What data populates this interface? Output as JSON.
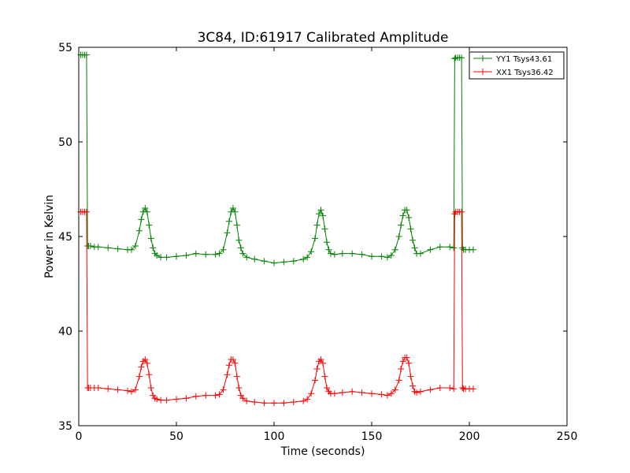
{
  "chart_data": {
    "type": "line",
    "title": "3C84, ID:61917 Calibrated Amplitude",
    "xlabel": "Time (seconds)",
    "ylabel": "Power in Kelvin",
    "xlim": [
      0,
      250
    ],
    "ylim": [
      35,
      55
    ],
    "xticks": [
      0,
      50,
      100,
      150,
      200,
      250
    ],
    "yticks": [
      35,
      40,
      45,
      50,
      55
    ],
    "grid": false,
    "legend_position": "top-right",
    "marker": "plus",
    "series": [
      {
        "name": "YY1 Tsys43.61",
        "color": "#008000",
        "x": [
          1,
          2,
          3,
          4,
          4.5,
          5,
          6,
          8,
          10,
          15,
          20,
          25,
          27,
          29,
          31,
          32,
          33,
          34,
          35,
          36,
          37,
          38,
          39,
          40,
          42,
          45,
          50,
          55,
          60,
          65,
          70,
          72,
          74,
          76,
          77,
          78,
          79,
          80,
          81,
          82,
          83,
          84,
          86,
          90,
          95,
          100,
          105,
          110,
          115,
          117,
          119,
          121,
          122,
          123,
          124,
          125,
          126,
          127,
          128,
          129,
          131,
          135,
          140,
          145,
          150,
          155,
          158,
          160,
          162,
          164,
          165,
          166,
          167,
          168,
          169,
          170,
          171,
          172,
          173,
          175,
          180,
          185,
          190,
          192,
          192.5,
          193,
          194,
          195,
          196,
          196.5,
          197,
          198,
          200,
          202
        ],
        "y": [
          54.6,
          54.6,
          54.6,
          54.6,
          44.5,
          44.5,
          44.5,
          44.45,
          44.45,
          44.4,
          44.35,
          44.3,
          44.3,
          44.5,
          45.3,
          45.9,
          46.3,
          46.5,
          46.3,
          45.6,
          44.9,
          44.4,
          44.1,
          44.0,
          43.9,
          43.9,
          43.95,
          44.0,
          44.1,
          44.05,
          44.05,
          44.1,
          44.3,
          45.2,
          45.8,
          46.3,
          46.5,
          46.3,
          45.6,
          44.8,
          44.4,
          44.1,
          43.9,
          43.8,
          43.7,
          43.6,
          43.65,
          43.7,
          43.8,
          43.9,
          44.2,
          44.9,
          45.6,
          46.2,
          46.4,
          46.1,
          45.4,
          44.7,
          44.3,
          44.1,
          44.05,
          44.1,
          44.1,
          44.05,
          43.95,
          43.95,
          43.9,
          44.0,
          44.3,
          45.0,
          45.6,
          46.1,
          46.4,
          46.4,
          46.0,
          45.4,
          44.8,
          44.4,
          44.1,
          44.1,
          44.3,
          44.45,
          44.45,
          44.4,
          54.4,
          54.45,
          54.45,
          54.45,
          54.45,
          44.4,
          44.3,
          44.3,
          44.3,
          44.3
        ]
      },
      {
        "name": "XX1 Tsys36.42",
        "color": "#ff0000",
        "x": [
          1,
          2,
          3,
          4,
          4.5,
          5,
          6,
          8,
          10,
          15,
          20,
          25,
          27,
          29,
          31,
          32,
          33,
          34,
          35,
          36,
          37,
          38,
          39,
          40,
          42,
          45,
          50,
          55,
          60,
          65,
          70,
          72,
          74,
          76,
          77,
          78,
          79,
          80,
          81,
          82,
          83,
          84,
          86,
          90,
          95,
          100,
          105,
          110,
          115,
          117,
          119,
          121,
          122,
          123,
          124,
          125,
          126,
          127,
          128,
          129,
          131,
          135,
          140,
          145,
          150,
          155,
          158,
          160,
          162,
          164,
          165,
          166,
          167,
          168,
          169,
          170,
          171,
          172,
          173,
          175,
          180,
          185,
          190,
          192,
          192.5,
          193,
          194,
          195,
          196,
          196.5,
          197,
          198,
          200,
          202
        ],
        "y": [
          46.3,
          46.3,
          46.3,
          46.3,
          37.0,
          37.0,
          37.0,
          37.0,
          37.0,
          36.95,
          36.9,
          36.85,
          36.8,
          36.9,
          37.6,
          38.1,
          38.4,
          38.5,
          38.3,
          37.7,
          37.0,
          36.6,
          36.45,
          36.4,
          36.35,
          36.35,
          36.4,
          36.45,
          36.55,
          36.6,
          36.6,
          36.65,
          36.9,
          37.7,
          38.2,
          38.5,
          38.5,
          38.3,
          37.6,
          37.0,
          36.6,
          36.45,
          36.3,
          36.25,
          36.2,
          36.2,
          36.2,
          36.25,
          36.3,
          36.4,
          36.7,
          37.4,
          38.0,
          38.4,
          38.5,
          38.3,
          37.6,
          37.0,
          36.8,
          36.7,
          36.7,
          36.75,
          36.8,
          36.75,
          36.7,
          36.65,
          36.6,
          36.7,
          36.9,
          37.4,
          38.0,
          38.4,
          38.6,
          38.6,
          38.3,
          37.6,
          37.1,
          36.8,
          36.75,
          36.8,
          36.9,
          37.0,
          37.0,
          36.95,
          46.2,
          46.3,
          46.3,
          46.3,
          46.3,
          37.0,
          36.95,
          36.95,
          36.95,
          36.95
        ]
      }
    ]
  }
}
